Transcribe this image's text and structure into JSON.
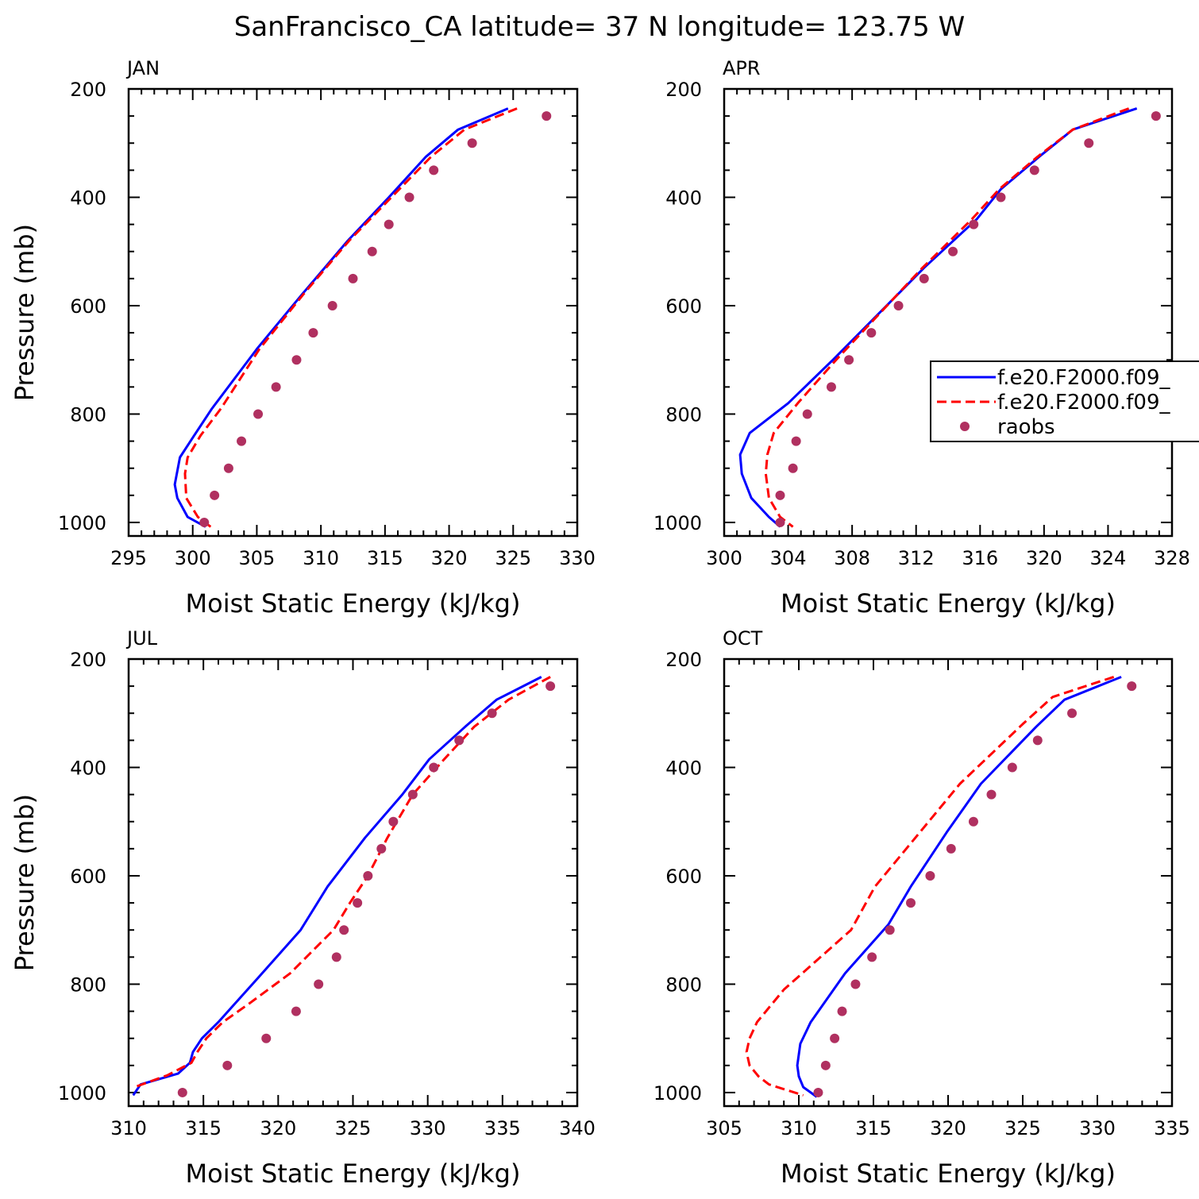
{
  "title": "SanFrancisco_CA  latitude= 37 N longitude= 123.75 W",
  "colors": {
    "series1": "#0000ff",
    "series2": "#ff0000",
    "raobs": "#b03060"
  },
  "legend": {
    "location": "inside APR panel, right side, clipped at figure edge",
    "items": [
      "f.e20.F2000.f09_",
      "f.e20.F2000.f09_",
      "raobs"
    ]
  },
  "chart_data": [
    {
      "type": "line",
      "panel_label": "JAN",
      "xlabel": "Moist Static Energy (kJ/kg)",
      "ylabel": "Pressure (mb)",
      "xlim": [
        295,
        330
      ],
      "xticks": [
        "295",
        "300",
        "305",
        "310",
        "315",
        "320",
        "325",
        "330"
      ],
      "ylim": [
        1025,
        200
      ],
      "yticks": [
        "200",
        "400",
        "600",
        "800",
        "1000"
      ],
      "series": [
        {
          "style": "solid",
          "color": "#0000ff",
          "x": [
            324.6,
            320.7,
            318.2,
            315.3,
            312.1,
            308.5,
            305.0,
            301.5,
            300.1,
            299.0,
            298.6,
            298.8,
            299.6,
            301.0
          ],
          "y": [
            236,
            275,
            325,
            400,
            480,
            580,
            680,
            790,
            840,
            880,
            930,
            955,
            990,
            1008
          ]
        },
        {
          "style": "dashed",
          "color": "#ff0000",
          "x": [
            325.3,
            321.2,
            318.6,
            315.5,
            312.2,
            308.6,
            305.2,
            302.2,
            300.6,
            299.6,
            299.4,
            299.5,
            300.4,
            301.4
          ],
          "y": [
            236,
            275,
            325,
            400,
            480,
            580,
            680,
            790,
            840,
            880,
            910,
            955,
            990,
            1008
          ]
        },
        {
          "style": "markers",
          "color": "#b03060",
          "name": "raobs",
          "x": [
            327.6,
            321.8,
            318.8,
            316.9,
            315.3,
            314.0,
            312.5,
            310.9,
            309.4,
            308.1,
            306.5,
            305.1,
            303.8,
            302.8,
            301.7,
            300.9
          ],
          "y": [
            250,
            300,
            350,
            400,
            450,
            500,
            550,
            600,
            650,
            700,
            750,
            800,
            850,
            900,
            950,
            1000
          ]
        }
      ]
    },
    {
      "type": "line",
      "panel_label": "APR",
      "xlabel": "Moist Static Energy (kJ/kg)",
      "ylabel": "",
      "xlim": [
        300,
        328
      ],
      "xticks": [
        "300",
        "304",
        "308",
        "312",
        "316",
        "320",
        "324",
        "328"
      ],
      "ylim": [
        1025,
        200
      ],
      "yticks": [
        "200",
        "400",
        "600",
        "800",
        "1000"
      ],
      "series": [
        {
          "style": "solid",
          "color": "#0000ff",
          "x": [
            325.8,
            321.8,
            319.7,
            317.3,
            315.8,
            312.5,
            306.8,
            304.0,
            301.6,
            301.0,
            301.1,
            301.7,
            302.8,
            303.5
          ],
          "y": [
            236,
            275,
            325,
            385,
            440,
            530,
            700,
            780,
            835,
            875,
            910,
            955,
            990,
            1008
          ]
        },
        {
          "style": "dashed",
          "color": "#ff0000",
          "x": [
            325.3,
            321.8,
            319.6,
            317.2,
            315.5,
            312.4,
            307.0,
            304.6,
            303.1,
            302.7,
            302.6,
            302.8,
            303.5,
            304.3
          ],
          "y": [
            236,
            275,
            325,
            385,
            440,
            530,
            700,
            780,
            835,
            875,
            910,
            955,
            990,
            1008
          ]
        },
        {
          "style": "markers",
          "color": "#b03060",
          "name": "raobs",
          "x": [
            327.0,
            322.8,
            319.4,
            317.3,
            315.6,
            314.3,
            312.5,
            310.9,
            309.2,
            307.8,
            306.7,
            305.2,
            304.5,
            304.3,
            303.5,
            303.5
          ],
          "y": [
            250,
            300,
            350,
            400,
            450,
            500,
            550,
            600,
            650,
            700,
            750,
            800,
            850,
            900,
            950,
            1000
          ]
        }
      ]
    },
    {
      "type": "line",
      "panel_label": "JUL",
      "xlabel": "Moist Static Energy (kJ/kg)",
      "ylabel": "Pressure (mb)",
      "xlim": [
        310,
        340
      ],
      "xticks": [
        "310",
        "315",
        "320",
        "325",
        "330",
        "335",
        "340"
      ],
      "ylim": [
        1025,
        200
      ],
      "yticks": [
        "200",
        "400",
        "600",
        "800",
        "1000"
      ],
      "series": [
        {
          "style": "solid",
          "color": "#0000ff",
          "x": [
            337.6,
            334.6,
            332.5,
            330.1,
            328.3,
            325.8,
            323.3,
            321.5,
            318.6,
            316.0,
            314.9,
            314.3,
            314.1,
            313.3,
            310.8,
            310.3
          ],
          "y": [
            233,
            275,
            325,
            385,
            450,
            530,
            620,
            700,
            790,
            870,
            900,
            925,
            945,
            965,
            985,
            1005
          ]
        },
        {
          "style": "dashed",
          "color": "#ff0000",
          "x": [
            338.2,
            335.4,
            333.1,
            331.1,
            329.0,
            327.3,
            326.0,
            324.8,
            323.7,
            320.8,
            318.1,
            316.3,
            315.2,
            314.6,
            314.2,
            312.6,
            310.4
          ],
          "y": [
            233,
            275,
            325,
            385,
            450,
            530,
            600,
            650,
            700,
            780,
            835,
            870,
            900,
            925,
            945,
            968,
            990
          ]
        },
        {
          "style": "markers",
          "color": "#b03060",
          "name": "raobs",
          "x": [
            338.2,
            334.3,
            332.1,
            330.4,
            329.0,
            327.7,
            326.9,
            326.0,
            325.3,
            324.4,
            323.9,
            322.7,
            321.2,
            319.2,
            316.6,
            313.6
          ],
          "y": [
            250,
            300,
            350,
            400,
            450,
            500,
            550,
            600,
            650,
            700,
            750,
            800,
            850,
            900,
            950,
            1000
          ]
        }
      ]
    },
    {
      "type": "line",
      "panel_label": "OCT",
      "xlabel": "Moist Static Energy (kJ/kg)",
      "ylabel": "",
      "xlim": [
        305,
        335
      ],
      "xticks": [
        "305",
        "310",
        "315",
        "320",
        "325",
        "330",
        "335"
      ],
      "ylim": [
        1025,
        200
      ],
      "yticks": [
        "200",
        "400",
        "600",
        "800",
        "1000"
      ],
      "series": [
        {
          "style": "solid",
          "color": "#0000ff",
          "x": [
            331.6,
            327.8,
            325.9,
            322.2,
            319.9,
            317.5,
            316.0,
            313.1,
            310.8,
            310.1,
            309.9,
            310.0,
            310.3,
            311.2
          ],
          "y": [
            233,
            275,
            325,
            430,
            520,
            620,
            690,
            780,
            870,
            910,
            950,
            970,
            990,
            1008
          ]
        },
        {
          "style": "dashed",
          "color": "#ff0000",
          "x": [
            331.1,
            327.0,
            325.0,
            320.8,
            318.1,
            315.1,
            313.5,
            309.0,
            307.2,
            306.7,
            306.5,
            306.7,
            307.3,
            308.0,
            310.3
          ],
          "y": [
            233,
            270,
            320,
            430,
            520,
            620,
            700,
            810,
            870,
            900,
            925,
            950,
            970,
            985,
            1005
          ]
        },
        {
          "style": "markers",
          "color": "#b03060",
          "name": "raobs",
          "x": [
            332.3,
            328.3,
            326.0,
            324.3,
            322.9,
            321.7,
            320.2,
            318.8,
            317.5,
            316.1,
            314.9,
            313.8,
            312.9,
            312.4,
            311.8,
            311.3
          ],
          "y": [
            250,
            300,
            350,
            400,
            450,
            500,
            550,
            600,
            650,
            700,
            750,
            800,
            850,
            900,
            950,
            1000
          ]
        }
      ]
    }
  ]
}
